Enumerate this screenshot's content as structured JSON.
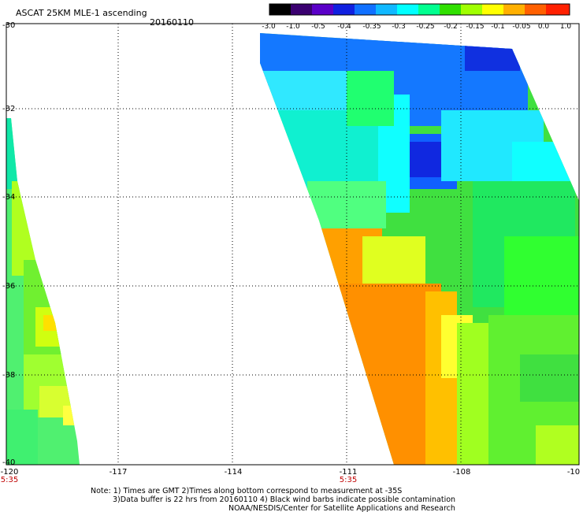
{
  "header": {
    "title": "ASCAT 25KM MLE-1 ascending",
    "date": "20160110"
  },
  "colorbar": {
    "labels": [
      "-3.0",
      "-1.0",
      "-0.5",
      "-0.4",
      "-0.35",
      "-0.3",
      "-0.25",
      "-0.2",
      "-0.15",
      "-0.1",
      "-0.05",
      "0.0",
      "1.0"
    ],
    "colors": [
      "#000000",
      "#3a0070",
      "#5a00c8",
      "#1020e0",
      "#1070ff",
      "#10b8ff",
      "#00ffff",
      "#00ff90",
      "#30e000",
      "#a0ff00",
      "#ffff00",
      "#ffb000",
      "#ff6000",
      "#ff2000"
    ]
  },
  "axes": {
    "lat_labels": [
      "-30",
      "-32",
      "-34",
      "-36",
      "-38",
      "-40"
    ],
    "lon_labels": [
      "-120",
      "-117",
      "-114",
      "-111",
      "-108",
      "-10"
    ],
    "time_labels": [
      "5:35",
      "5:35"
    ],
    "time_label_color": "#c00000"
  },
  "footer": {
    "line1": "Note: 1) Times are GMT 2)Times along bottom correspond to measurement at -35S",
    "line2": "3)Data buffer is 22 hrs from 20160110 4) Black wind barbs indicate possible contamination",
    "line3": "NOAA/NESDIS/Center for Satellite Applications and Research"
  }
}
